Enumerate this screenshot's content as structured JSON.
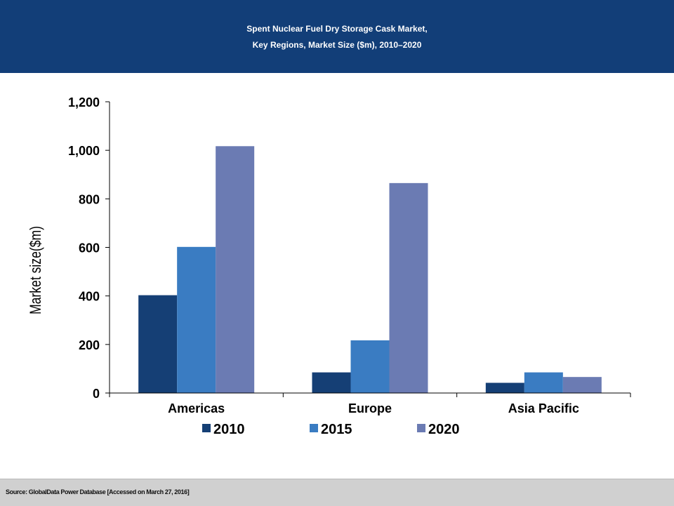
{
  "header": {
    "title_line1": "Spent Nuclear Fuel  Dry  Storage Cask Market,",
    "title_line2": "Key Regions,  Market Size ($m), 2010–2020"
  },
  "footer": {
    "source": "Source: GlobalData Power Database [Accessed on March 27, 2016]"
  },
  "colors": {
    "header_bg": "#123e78",
    "s2010": "#153f75",
    "s2015": "#3a7cc2",
    "s2020": "#6b7bb3"
  },
  "chart_data": {
    "type": "bar",
    "title": "Spent Nuclear Fuel Dry Storage Cask Market, Key Regions, Market Size ($m), 2010–2020",
    "xlabel": "",
    "ylabel": "Market size($m)",
    "ylim": [
      0,
      1200
    ],
    "yticks": [
      0,
      200,
      400,
      600,
      800,
      1000,
      1200
    ],
    "ytick_labels": [
      "0",
      "200",
      "400",
      "600",
      "800",
      "1,000",
      "1,200"
    ],
    "categories": [
      "Americas",
      "Europe",
      "Asia Pacific"
    ],
    "series": [
      {
        "name": "2010",
        "color": "#153f75",
        "values": [
          403,
          85,
          42
        ]
      },
      {
        "name": "2015",
        "color": "#3a7cc2",
        "values": [
          602,
          217,
          85
        ]
      },
      {
        "name": "2020",
        "color": "#6b7bb3",
        "values": [
          1017,
          865,
          66
        ]
      }
    ],
    "legend_position": "bottom",
    "grid": false
  }
}
